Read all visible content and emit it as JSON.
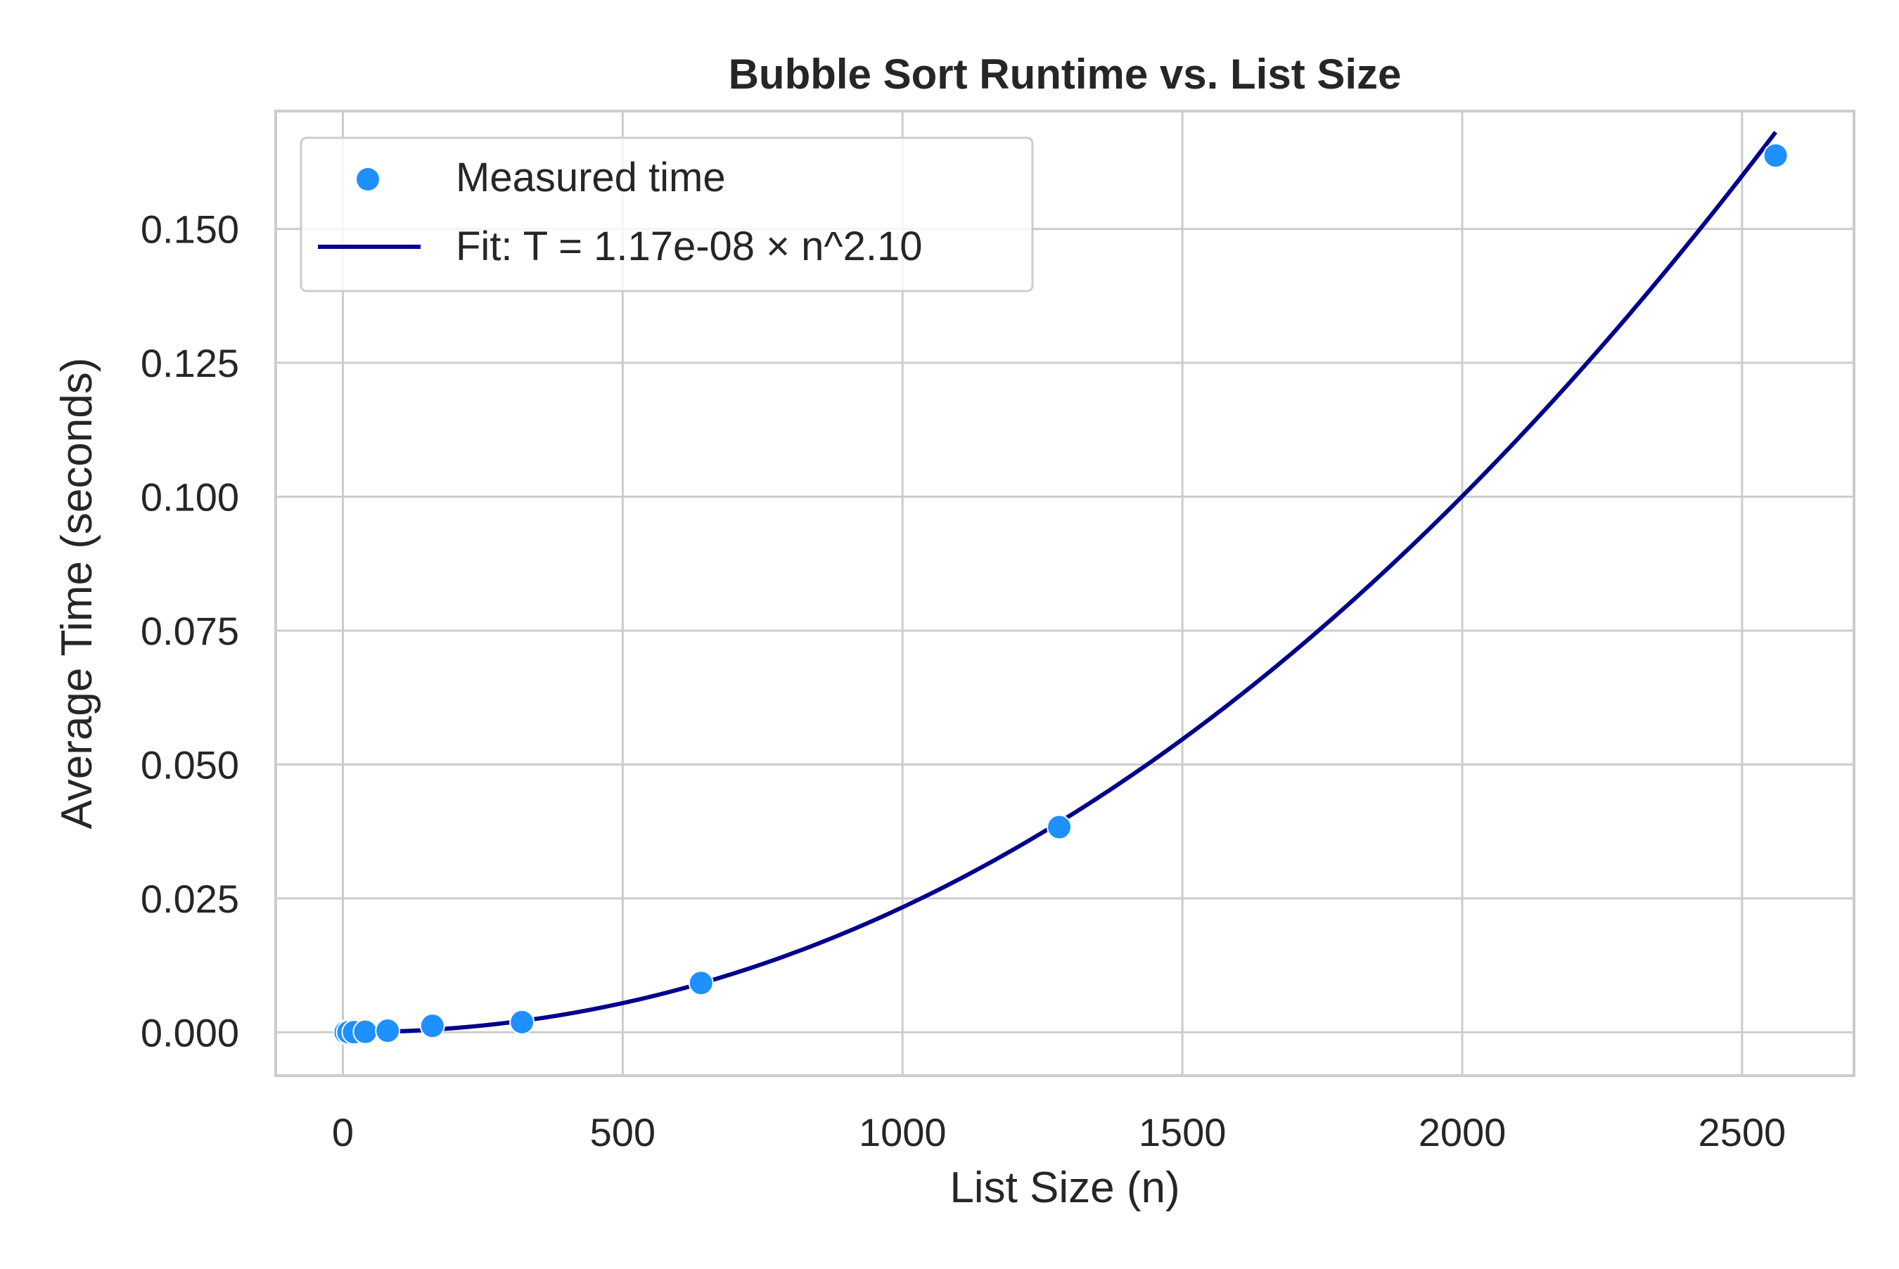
{
  "chart_data": {
    "type": "scatter",
    "title": "Bubble Sort Runtime vs. List Size",
    "xlabel": "List Size (n)",
    "ylabel": "Average Time (seconds)",
    "xlim": [
      -120,
      2700
    ],
    "ylim": [
      -0.0081,
      0.172
    ],
    "xticks": [
      0,
      500,
      1000,
      1500,
      2000,
      2500
    ],
    "xtick_labels": [
      "0",
      "500",
      "1000",
      "1500",
      "2000",
      "2500"
    ],
    "yticks": [
      0.0,
      0.025,
      0.05,
      0.075,
      0.1,
      0.125,
      0.15
    ],
    "ytick_labels": [
      "0.000",
      "0.025",
      "0.050",
      "0.075",
      "0.100",
      "0.125",
      "0.150"
    ],
    "grid": true,
    "legend_position": "top-left",
    "series": [
      {
        "name": "Measured time",
        "kind": "scatter",
        "color": "#1E90FF",
        "x": [
          5,
          10,
          20,
          40,
          80,
          160,
          320,
          640,
          1280,
          2560
        ],
        "y": [
          2e-06,
          6e-06,
          2e-05,
          8e-05,
          0.0003,
          0.0012,
          0.0019,
          0.0092,
          0.0383,
          0.1637
        ]
      },
      {
        "name": "Fit: T = 1.17e-08 × n^2.10",
        "kind": "line",
        "color": "#00008B",
        "fit": {
          "a": 1.17e-08,
          "b": 2.1
        },
        "x_range": [
          5,
          2560
        ]
      }
    ]
  }
}
